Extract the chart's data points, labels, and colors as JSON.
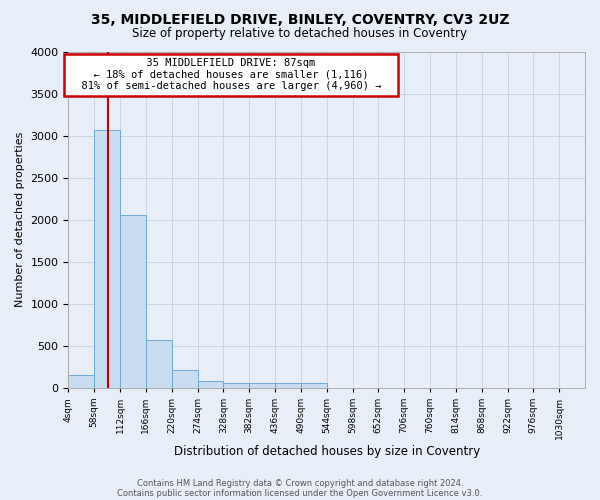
{
  "title": "35, MIDDLEFIELD DRIVE, BINLEY, COVENTRY, CV3 2UZ",
  "subtitle": "Size of property relative to detached houses in Coventry",
  "xlabel": "Distribution of detached houses by size in Coventry",
  "ylabel": "Number of detached properties",
  "annotation_line1": "35 MIDDLEFIELD DRIVE: 87sqm",
  "annotation_line2": "← 18% of detached houses are smaller (1,116)",
  "annotation_line3": "81% of semi-detached houses are larger (4,960) →",
  "bin_edges": [
    4,
    58,
    112,
    166,
    220,
    274,
    328,
    382,
    436,
    490,
    544,
    598,
    652,
    706,
    760,
    814,
    868,
    922,
    976,
    1030,
    1084
  ],
  "bin_counts": [
    150,
    3070,
    2060,
    570,
    210,
    75,
    55,
    55,
    55,
    55,
    0,
    0,
    0,
    0,
    0,
    0,
    0,
    0,
    0,
    0
  ],
  "bar_color": "#c9ddf2",
  "bar_edge_color": "#6aaad4",
  "vline_color": "#cc0000",
  "vline_x": 87,
  "annotation_box_edge_color": "#cc0000",
  "annotation_box_face_color": "#ffffff",
  "grid_color": "#c8d0e0",
  "background_color": "#e8eef8",
  "ylim": [
    0,
    4000
  ],
  "yticks": [
    0,
    500,
    1000,
    1500,
    2000,
    2500,
    3000,
    3500,
    4000
  ],
  "footer_line1": "Contains HM Land Registry data © Crown copyright and database right 2024.",
  "footer_line2": "Contains public sector information licensed under the Open Government Licence v3.0.",
  "title_fontsize": 10,
  "subtitle_fontsize": 8.5,
  "footer_fontsize": 6
}
